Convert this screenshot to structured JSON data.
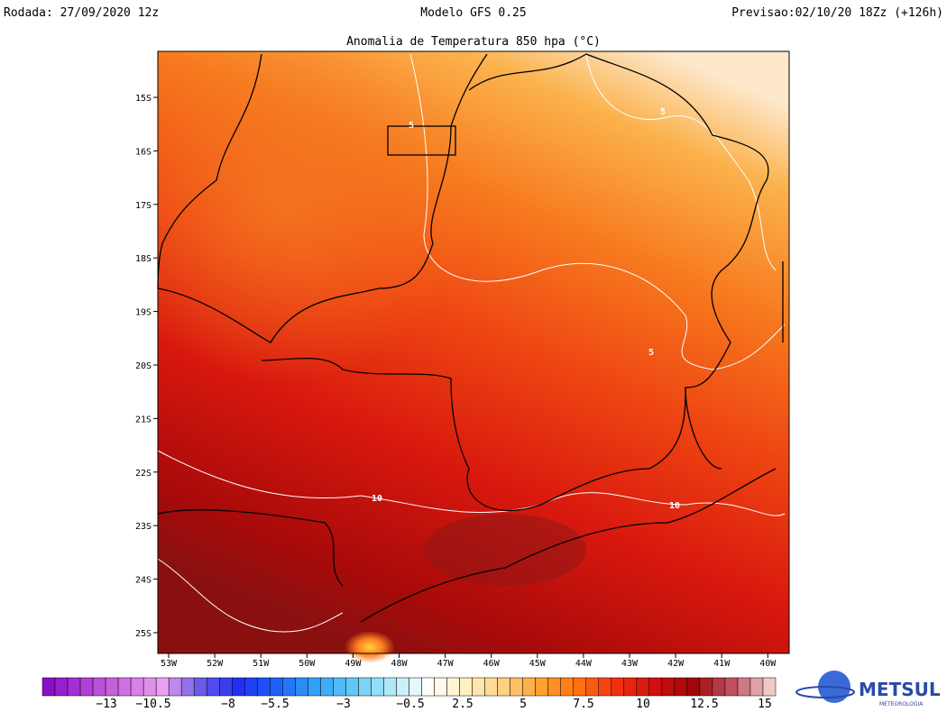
{
  "header": {
    "run": "Rodada: 27/09/2020 12z",
    "model": "Modelo GFS 0.25",
    "forecast": "Previsao:02/10/20 18Zz (+126h)"
  },
  "map": {
    "title": "Anomalia de Temperatura 850 hpa (°C)",
    "lat_labels": [
      "15S",
      "16S",
      "17S",
      "18S",
      "19S",
      "20S",
      "21S",
      "22S",
      "23S",
      "24S",
      "25S"
    ],
    "lon_labels": [
      "53W",
      "52W",
      "51W",
      "50W",
      "49W",
      "48W",
      "47W",
      "46W",
      "45W",
      "44W",
      "43W",
      "42W",
      "41W",
      "40W"
    ],
    "contour_labels": [
      "5",
      "5",
      "5",
      "10",
      "10"
    ]
  },
  "colorbar": {
    "labels": [
      "−13",
      "−10.5",
      "−8",
      "−5.5",
      "−3",
      "−0.5",
      "2.5",
      "5",
      "7.5",
      "10",
      "12.5",
      "15"
    ],
    "colors": [
      "#8a10c8",
      "#b040d8",
      "#d070e0",
      "#e8a0f0",
      "#6a5ae8",
      "#2030f0",
      "#2060f8",
      "#30a0f8",
      "#60c8f8",
      "#b0e8f8",
      "#ffffff",
      "#fff0c0",
      "#ffd080",
      "#ffa030",
      "#ff7010",
      "#f03010",
      "#d01010",
      "#a00808",
      "#c05060",
      "#f0c8c8"
    ]
  },
  "logo": {
    "name": "METSUL",
    "tagline": "METEOROLOGIA"
  }
}
